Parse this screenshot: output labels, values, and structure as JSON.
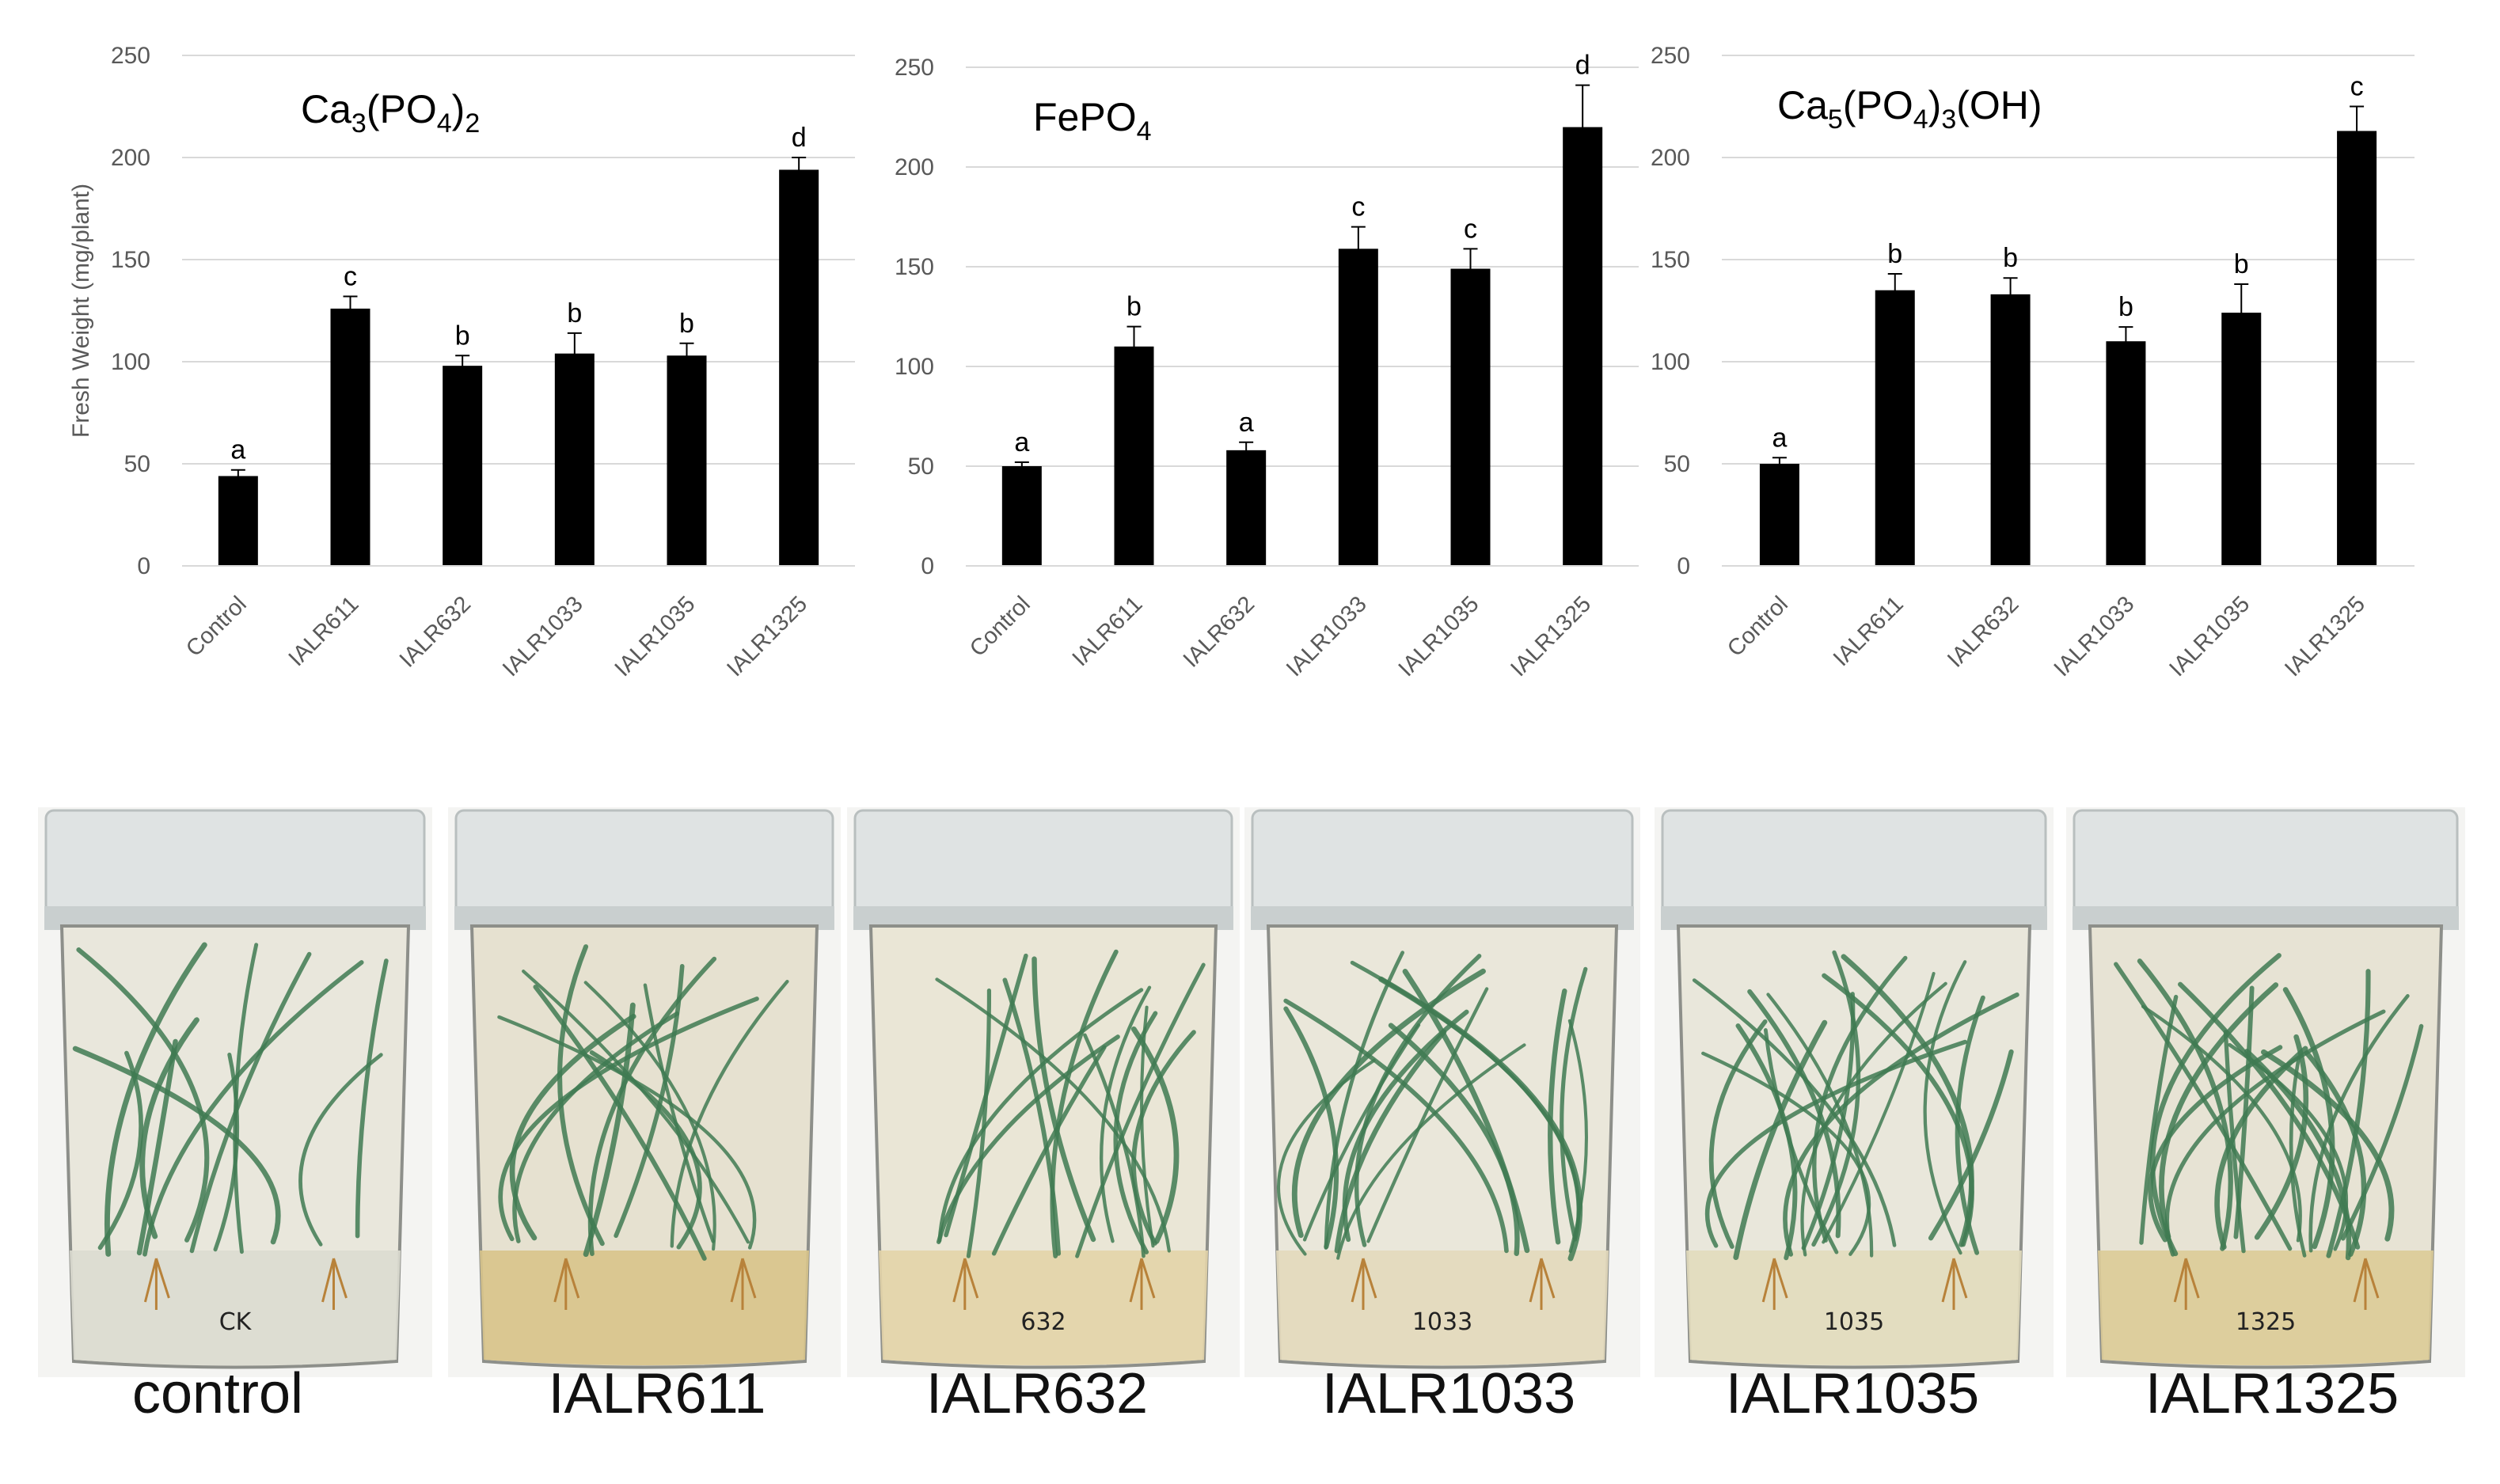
{
  "chart_data": [
    {
      "type": "bar",
      "title": "Ca3(PO4)2",
      "title_parts": [
        "Ca",
        "3",
        "(PO",
        "4",
        ")",
        "2"
      ],
      "ylabel": "Fresh Weight (mg/plant)",
      "ylim": [
        0,
        250
      ],
      "yticks": [
        0,
        50,
        100,
        150,
        200,
        250
      ],
      "categories": [
        "Control",
        "IALR611",
        "IALR632",
        "IALR1033",
        "IALR1035",
        "IALR1325"
      ],
      "values": [
        44,
        126,
        98,
        104,
        103,
        194
      ],
      "errors": [
        3,
        6,
        5,
        10,
        6,
        6
      ],
      "letters": [
        "a",
        "c",
        "b",
        "b",
        "b",
        "d"
      ],
      "grid": true
    },
    {
      "type": "bar",
      "title": "FePO4",
      "title_parts": [
        "FePO",
        "4"
      ],
      "ylabel": "",
      "ylim": [
        0,
        250
      ],
      "yticks": [
        0,
        50,
        100,
        150,
        200,
        250
      ],
      "categories": [
        "Control",
        "IALR611",
        "IALR632",
        "IALR1033",
        "IALR1035",
        "IALR1325"
      ],
      "values": [
        50,
        110,
        58,
        159,
        149,
        220
      ],
      "errors": [
        2,
        10,
        4,
        11,
        10,
        21
      ],
      "letters": [
        "a",
        "b",
        "a",
        "c",
        "c",
        "d"
      ],
      "grid": true
    },
    {
      "type": "bar",
      "title": "Ca5(PO4)3(OH)",
      "title_parts": [
        "Ca",
        "5",
        "(PO",
        "4",
        ")",
        "3",
        "(OH)"
      ],
      "ylabel": "",
      "ylim": [
        0,
        250
      ],
      "yticks": [
        0,
        50,
        100,
        150,
        200,
        250
      ],
      "categories": [
        "Control",
        "IALR611",
        "IALR632",
        "IALR1033",
        "IALR1035",
        "IALR1325"
      ],
      "values": [
        50,
        135,
        133,
        110,
        124,
        213
      ],
      "errors": [
        3,
        8,
        8,
        7,
        14,
        12
      ],
      "letters": [
        "a",
        "b",
        "b",
        "b",
        "b",
        "c"
      ],
      "grid": true
    }
  ],
  "photos": [
    {
      "label": "control",
      "jar_text": "CK",
      "tint": "#e9e7dc",
      "media": "#dcdbd0"
    },
    {
      "label": "IALR611",
      "jar_text": "",
      "tint": "#e6e1d0",
      "media": "#d8c48a"
    },
    {
      "label": "IALR632",
      "jar_text": "632",
      "tint": "#eae6d6",
      "media": "#e3d4a8"
    },
    {
      "label": "IALR1033",
      "jar_text": "1033",
      "tint": "#eae7da",
      "media": "#e3d9bb"
    },
    {
      "label": "IALR1035",
      "jar_text": "1035",
      "tint": "#e9e7db",
      "media": "#e2dbbd"
    },
    {
      "label": "IALR1325",
      "jar_text": "1325",
      "tint": "#e7e3d4",
      "media": "#dccb97"
    }
  ],
  "colors": {
    "bar": "#000000",
    "grid": "#d9d9d9",
    "tick_text": "#595959",
    "leaf": "#3f7a52",
    "root": "#b8823a"
  }
}
